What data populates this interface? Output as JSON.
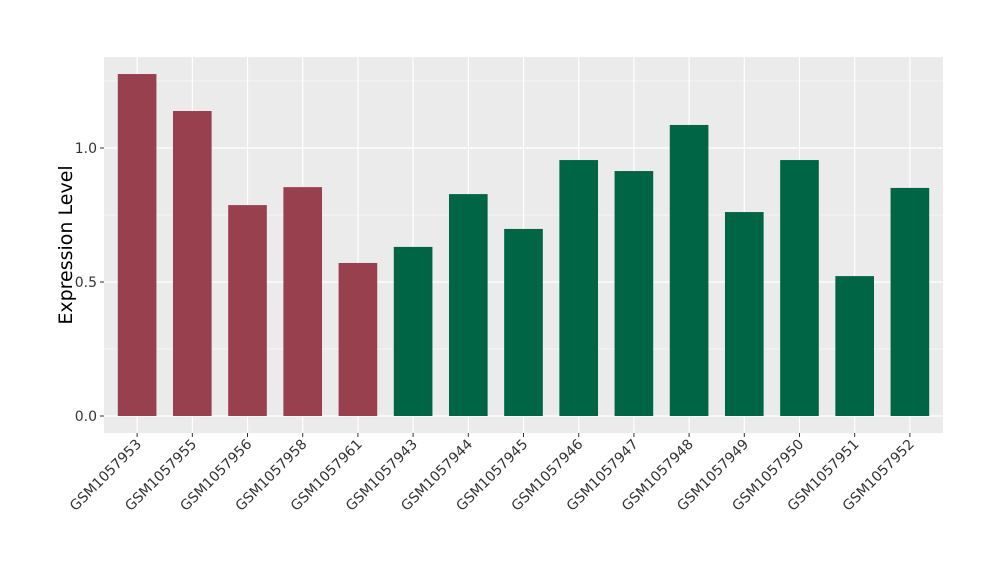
{
  "chart_data": {
    "type": "bar",
    "title": "",
    "xlabel": "",
    "ylabel": "Expression Level",
    "ylim": [
      -0.05,
      1.34
    ],
    "yticks": [
      0.0,
      0.5,
      1.0
    ],
    "ytick_labels": [
      "0.0",
      "0.5",
      "1.0"
    ],
    "grid": true,
    "legend": "none",
    "categories": [
      "GSM1057953",
      "GSM1057955",
      "GSM1057956",
      "GSM1057958",
      "GSM1057961",
      "GSM1057943",
      "GSM1057944",
      "GSM1057945",
      "GSM1057946",
      "GSM1057947",
      "GSM1057948",
      "GSM1057949",
      "GSM1057950",
      "GSM1057951",
      "GSM1057952"
    ],
    "values": [
      1.276,
      1.138,
      0.787,
      0.854,
      0.571,
      0.631,
      0.828,
      0.698,
      0.955,
      0.914,
      1.086,
      0.761,
      0.955,
      0.522,
      0.851
    ],
    "groups": [
      "a",
      "a",
      "a",
      "a",
      "a",
      "b",
      "b",
      "b",
      "b",
      "b",
      "b",
      "b",
      "b",
      "b",
      "b"
    ],
    "colors": {
      "a": "#99404F",
      "b": "#006544"
    }
  }
}
